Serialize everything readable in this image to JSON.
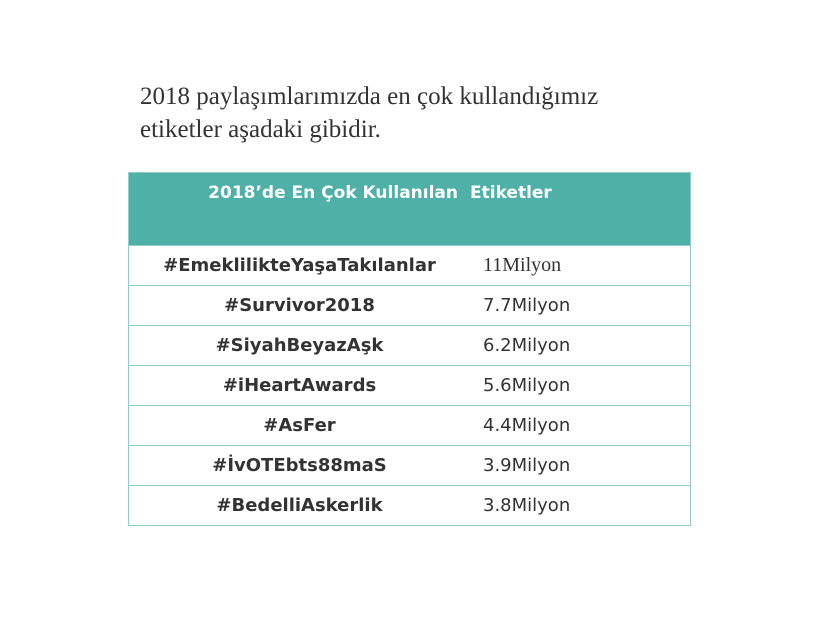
{
  "intro": {
    "line1": "2018 paylaşımlarımızda en çok kullandığımız",
    "line2": "etiketler aşadaki gibidir."
  },
  "table": {
    "header": [
      "2018’de  En  Çok  Kullanılan",
      "Etiketler"
    ],
    "header_color": "#4fb0a8",
    "rows": [
      {
        "tag": "#EmeklilikteYaşaTakılanlar",
        "value": "11Milyon"
      },
      {
        "tag": "#Survivor2018",
        "value": "7.7Milyon"
      },
      {
        "tag": "#SiyahBeyazAşk",
        "value": "6.2Milyon"
      },
      {
        "tag": "#iHeartAwards",
        "value": "5.6Milyon"
      },
      {
        "tag": "#AsFer",
        "value": "4.4Milyon"
      },
      {
        "tag": "#İvOTEbts88maS",
        "value": "3.9Milyon"
      },
      {
        "tag": "#BedelliAskerlik",
        "value": "3.8Milyon"
      }
    ]
  }
}
